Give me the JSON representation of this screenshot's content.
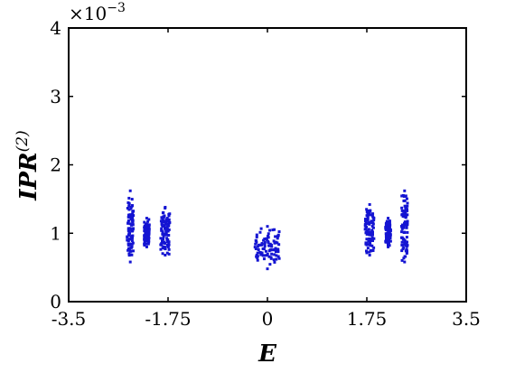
{
  "chart_data": {
    "type": "scatter",
    "title": "",
    "xlabel": "E",
    "ylabel_main": "IPR",
    "ylabel_sup": "(2)",
    "y_scale_base": "×10",
    "y_scale_exp": "−3",
    "xlim": [
      -3.5,
      3.5
    ],
    "ylim": [
      0,
      4
    ],
    "x_ticks": [
      -3.5,
      -1.75,
      0,
      1.75,
      3.5
    ],
    "x_tick_labels": [
      "-3.5",
      "-1.75",
      "0",
      "1.75",
      "3.5"
    ],
    "y_ticks": [
      0,
      1,
      2,
      3,
      4
    ],
    "y_tick_labels": [
      "0",
      "1",
      "2",
      "3",
      "4"
    ],
    "grid": false,
    "marker_color": "#1414d2",
    "clusters": [
      {
        "x_range": [
          -2.47,
          -2.36
        ],
        "y_range": [
          0.58,
          1.62
        ]
      },
      {
        "x_range": [
          -2.17,
          -2.08
        ],
        "y_range": [
          0.8,
          1.22
        ]
      },
      {
        "x_range": [
          -1.88,
          -1.72
        ],
        "y_range": [
          0.68,
          1.38
        ]
      },
      {
        "x_range": [
          -0.22,
          0.22
        ],
        "y_range": [
          0.48,
          1.1
        ]
      },
      {
        "x_range": [
          1.72,
          1.88
        ],
        "y_range": [
          0.68,
          1.42
        ]
      },
      {
        "x_range": [
          2.08,
          2.17
        ],
        "y_range": [
          0.8,
          1.22
        ]
      },
      {
        "x_range": [
          2.36,
          2.47
        ],
        "y_range": [
          0.58,
          1.62
        ]
      }
    ]
  }
}
